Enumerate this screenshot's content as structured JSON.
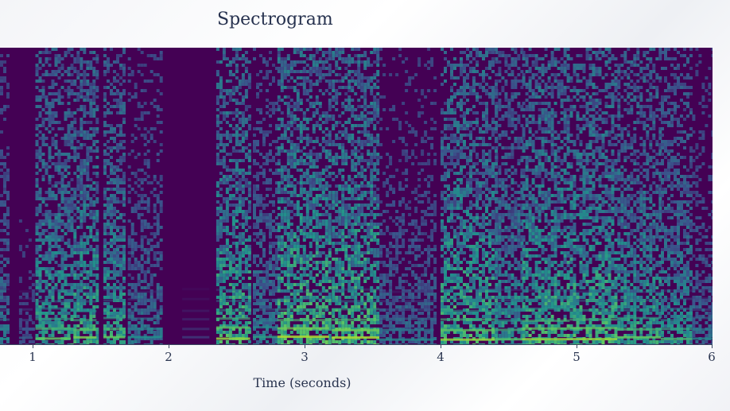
{
  "chart_data": {
    "type": "heatmap",
    "title": "Spectrogram",
    "xlabel": "Time (seconds)",
    "ylabel": "",
    "x_ticks": [
      "1",
      "2",
      "3",
      "4",
      "5",
      "6"
    ],
    "x_tick_values": [
      1,
      2,
      3,
      4,
      5,
      6
    ],
    "xlim": [
      0.76,
      6.0
    ],
    "colormap": "viridis",
    "colors": {
      "background": "#440154",
      "low": "#3b528b",
      "mid": "#21918c",
      "high": "#5ec962",
      "peak": "#c8e020"
    },
    "grid": false,
    "voiced_segments": [
      {
        "start": 0.76,
        "end": 0.83,
        "intensity": 0.55
      },
      {
        "start": 0.9,
        "end": 1.0,
        "intensity": 0.35
      },
      {
        "start": 1.02,
        "end": 1.28,
        "intensity": 0.8
      },
      {
        "start": 1.3,
        "end": 1.47,
        "intensity": 0.85
      },
      {
        "start": 1.52,
        "end": 1.68,
        "intensity": 0.8
      },
      {
        "start": 1.7,
        "end": 1.95,
        "intensity": 0.55
      },
      {
        "start": 2.1,
        "end": 2.3,
        "intensity": 0.2
      },
      {
        "start": 2.35,
        "end": 2.6,
        "intensity": 0.9
      },
      {
        "start": 2.62,
        "end": 2.8,
        "intensity": 0.6
      },
      {
        "start": 2.8,
        "end": 3.18,
        "intensity": 0.95
      },
      {
        "start": 3.2,
        "end": 3.55,
        "intensity": 0.95
      },
      {
        "start": 3.55,
        "end": 3.95,
        "intensity": 0.5
      },
      {
        "start": 4.0,
        "end": 4.4,
        "intensity": 0.9
      },
      {
        "start": 4.4,
        "end": 4.6,
        "intensity": 0.75
      },
      {
        "start": 4.6,
        "end": 4.95,
        "intensity": 0.9
      },
      {
        "start": 4.95,
        "end": 5.3,
        "intensity": 0.9
      },
      {
        "start": 5.3,
        "end": 5.62,
        "intensity": 0.8
      },
      {
        "start": 5.62,
        "end": 5.85,
        "intensity": 0.7
      },
      {
        "start": 5.85,
        "end": 6.0,
        "intensity": 0.5
      }
    ]
  }
}
